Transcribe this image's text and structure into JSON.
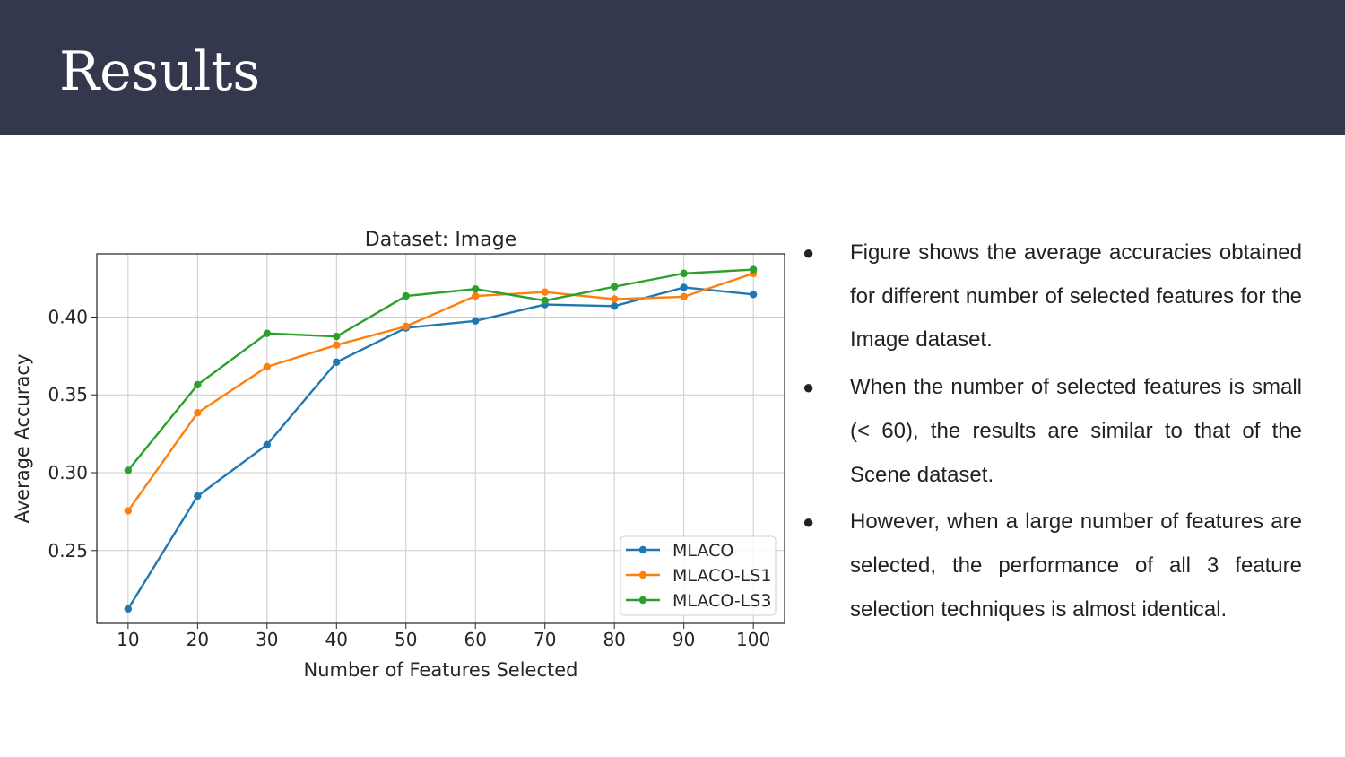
{
  "slide": {
    "title": "Results",
    "bullets": [
      "Figure shows the average accuracies obtained for different number of selected features for the Image dataset.",
      "When the number of selected features is small (< 60), the results are similar to that of the Scene dataset.",
      "However, when a large number of features are selected, the performance of all 3 feature selection techniques is almost identical."
    ],
    "bullet_glyph": "●"
  },
  "colors": {
    "header_bg": "#33384d",
    "MLACO": "#1f77b4",
    "MLACO-LS1": "#ff7f0e",
    "MLACO-LS3": "#2ca02c"
  },
  "chart_data": {
    "type": "line",
    "title": "Dataset: Image",
    "xlabel": "Number of Features Selected",
    "ylabel": "Average Accuracy",
    "x": [
      10,
      20,
      30,
      40,
      50,
      60,
      70,
      80,
      90,
      100
    ],
    "xticks": [
      10,
      20,
      30,
      40,
      50,
      60,
      70,
      80,
      90,
      100
    ],
    "yticks": [
      0.25,
      0.3,
      0.35,
      0.4
    ],
    "ytick_labels": [
      "0.25",
      "0.30",
      "0.35",
      "0.40"
    ],
    "xlim": [
      5.5,
      104.5
    ],
    "ylim": [
      0.2032,
      0.4406
    ],
    "grid": true,
    "legend_position": "lower-right",
    "series": [
      {
        "name": "MLACO",
        "color": "#1f77b4",
        "values": [
          0.2125,
          0.285,
          0.318,
          0.371,
          0.393,
          0.3975,
          0.408,
          0.407,
          0.419,
          0.4145
        ]
      },
      {
        "name": "MLACO-LS1",
        "color": "#ff7f0e",
        "values": [
          0.2755,
          0.3385,
          0.368,
          0.382,
          0.394,
          0.4135,
          0.416,
          0.4115,
          0.413,
          0.428
        ]
      },
      {
        "name": "MLACO-LS3",
        "color": "#2ca02c",
        "values": [
          0.3015,
          0.3565,
          0.3895,
          0.3875,
          0.4135,
          0.418,
          0.4105,
          0.4195,
          0.428,
          0.4305
        ]
      }
    ]
  }
}
